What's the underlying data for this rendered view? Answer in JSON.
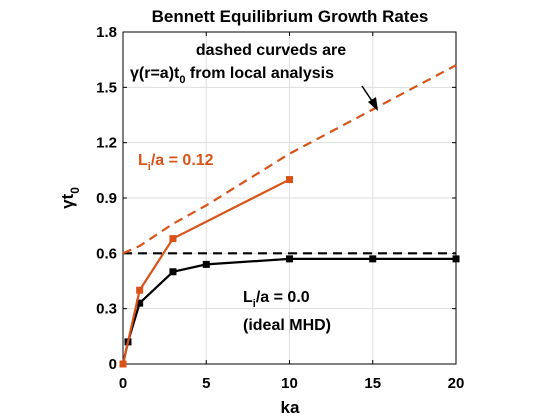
{
  "chart_data": {
    "type": "line",
    "title": "Bennett Equilibrium Growth Rates",
    "xlabel": "ka",
    "ylabel": "γt",
    "ylabel_sub": "0",
    "xlim": [
      0,
      20
    ],
    "ylim": [
      0,
      1.8
    ],
    "xticks": [
      "0",
      "5",
      "10",
      "15",
      "20"
    ],
    "yticks": [
      "0",
      "0.3",
      "0.6",
      "0.9",
      "1.2",
      "1.5",
      "1.8"
    ],
    "grid": true,
    "series": [
      {
        "style": "solid-marker",
        "color": "#000000",
        "x": [
          0,
          0.3,
          1,
          3,
          5,
          10,
          15,
          20
        ],
        "y": [
          0,
          0.12,
          0.33,
          0.5,
          0.54,
          0.57,
          0.57,
          0.57
        ]
      },
      {
        "style": "solid-marker",
        "color": "#d95319",
        "x": [
          0,
          1,
          3,
          10
        ],
        "y": [
          0,
          0.4,
          0.68,
          1.0
        ]
      },
      {
        "style": "dashed",
        "color": "#000000",
        "x": [
          0,
          20
        ],
        "y": [
          0.6,
          0.6
        ]
      },
      {
        "style": "dashed",
        "color": "#d95319",
        "x": [
          0,
          1,
          2,
          3,
          5,
          7.5,
          10,
          12.5,
          15,
          17.5,
          20
        ],
        "y": [
          0.6,
          0.64,
          0.7,
          0.76,
          0.86,
          1.0,
          1.14,
          1.26,
          1.38,
          1.5,
          1.62
        ]
      }
    ],
    "annotations": {
      "dashed_line1": "dashed curveds are",
      "dashed_line2_prefix": "γ(r=a)t",
      "dashed_line2_sub": "0",
      "dashed_line2_suffix": " from local analysis",
      "orange_label_prefix": "L",
      "orange_label_sub": "i",
      "orange_label_suffix": "/a = 0.12",
      "black_label_prefix": "L",
      "black_label_sub": "i",
      "black_label_suffix": "/a = 0.0",
      "black_label_line2": "(ideal MHD)"
    },
    "colors": {
      "orange": "#d95319",
      "black": "#000000"
    }
  }
}
